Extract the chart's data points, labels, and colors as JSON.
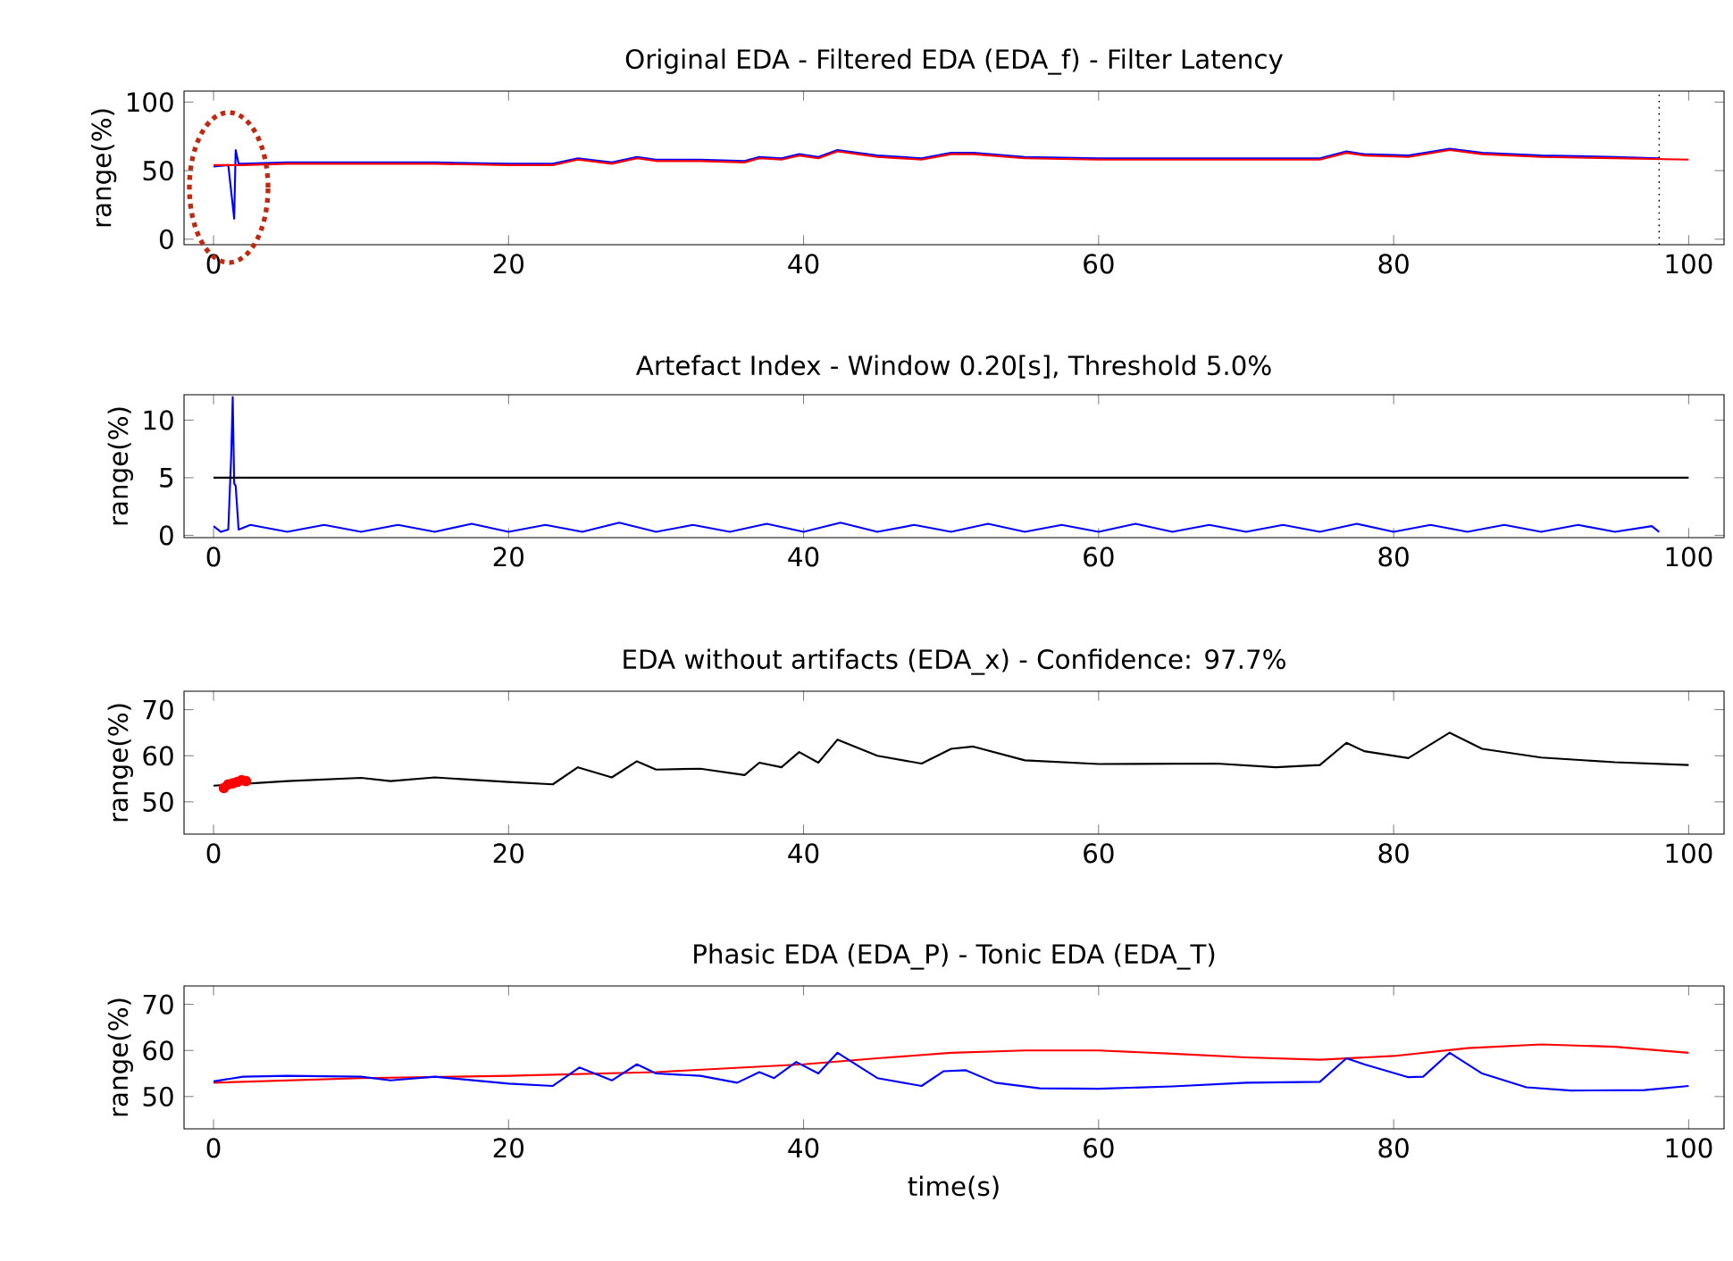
{
  "chart_data": [
    {
      "type": "line",
      "title": "Original EDA - Filtered EDA (EDA_f) - Filter Latency",
      "ylabel": "range(%)",
      "xlim": [
        -2,
        102.4
      ],
      "ylim": [
        -4,
        108
      ],
      "xticks": [
        0,
        20,
        40,
        60,
        80,
        100
      ],
      "yticks": [
        0,
        50,
        100
      ],
      "ref_lines": [
        {
          "axis": "x",
          "value": 98,
          "color": "#000000",
          "line_style": "dotted"
        }
      ],
      "series": [
        {
          "color": "#0000ff",
          "x": [
            0,
            1,
            1.4,
            1.5,
            1.7,
            2,
            5,
            10,
            12,
            15,
            20,
            23,
            24.7,
            27,
            28.7,
            30,
            33,
            36,
            37,
            38.5,
            39.7,
            41,
            42.3,
            45,
            48,
            50,
            51.5,
            55,
            60,
            68,
            72,
            75,
            76.8,
            78,
            81,
            83.8,
            86,
            90,
            95,
            98
          ],
          "values": [
            53,
            54,
            15,
            65,
            55,
            55,
            56,
            56,
            56,
            56,
            55,
            55,
            59,
            56,
            60,
            58,
            58,
            57,
            60,
            59,
            62,
            60,
            65,
            61,
            59,
            63,
            63,
            60,
            59,
            59,
            59,
            59,
            64,
            62,
            61,
            66,
            63,
            61,
            60,
            59
          ]
        },
        {
          "color": "#ff0000",
          "x": [
            0,
            2,
            5,
            10,
            12,
            15,
            20,
            23,
            24.7,
            27,
            28.7,
            30,
            33,
            36,
            37,
            38.5,
            39.7,
            41,
            42.3,
            45,
            48,
            50,
            51.5,
            55,
            60,
            68,
            72,
            75,
            76.8,
            78,
            81,
            83.8,
            86,
            90,
            95,
            100
          ],
          "values": [
            54,
            54,
            55,
            55,
            55,
            55,
            54,
            54,
            58,
            55,
            59,
            57,
            57,
            56,
            59,
            58,
            61,
            59,
            64,
            60,
            58,
            62,
            62,
            59,
            58,
            58,
            58,
            58,
            63,
            61,
            60,
            65,
            62,
            60,
            59,
            58
          ]
        }
      ]
    },
    {
      "type": "line",
      "title": "Artefact Index - Window 0.20[s], Threshold 5.0%",
      "ylabel": "range(%)",
      "xlim": [
        -2,
        102.4
      ],
      "ylim": [
        -0.2,
        12.2
      ],
      "xticks": [
        0,
        20,
        40,
        60,
        80,
        100
      ],
      "yticks": [
        0,
        5,
        10
      ],
      "series": [
        {
          "color": "#0000ff",
          "x": [
            0,
            0.5,
            1,
            1.2,
            1.3,
            1.4,
            1.5,
            1.7,
            2.5,
            5,
            7.5,
            10,
            12.5,
            15,
            17.5,
            20,
            22.5,
            25,
            27.5,
            30,
            32.5,
            35,
            37.5,
            40,
            42.5,
            45,
            47.5,
            50,
            52.5,
            55,
            57.5,
            60,
            62.5,
            65,
            67.5,
            70,
            72.5,
            75,
            77.5,
            80,
            82.5,
            85,
            87.5,
            90,
            92.5,
            95,
            97.5,
            98
          ],
          "values": [
            0.8,
            0.3,
            0.5,
            7,
            12,
            4.5,
            4.3,
            0.5,
            0.9,
            0.3,
            0.9,
            0.3,
            0.9,
            0.3,
            1,
            0.3,
            0.9,
            0.3,
            1.1,
            0.3,
            0.9,
            0.3,
            1,
            0.3,
            1.1,
            0.3,
            0.9,
            0.3,
            1,
            0.3,
            0.9,
            0.3,
            1,
            0.3,
            0.9,
            0.3,
            0.9,
            0.3,
            1,
            0.3,
            0.9,
            0.3,
            0.9,
            0.3,
            0.9,
            0.3,
            0.8,
            0.3
          ]
        },
        {
          "color": "#000000",
          "x": [
            0,
            100
          ],
          "values": [
            5,
            5
          ]
        }
      ]
    },
    {
      "type": "line",
      "title": "EDA without artifacts (EDA_x) - Confidence: 97.7%",
      "ylabel": "range(%)",
      "xlim": [
        -2,
        102.4
      ],
      "ylim": [
        43,
        74
      ],
      "xticks": [
        0,
        20,
        40,
        60,
        80,
        100
      ],
      "yticks": [
        50,
        60,
        70
      ],
      "series": [
        {
          "color": "#000000",
          "x": [
            0,
            5,
            10,
            12,
            15,
            20,
            23,
            24.7,
            27,
            28.7,
            30,
            33,
            36,
            37,
            38.5,
            39.7,
            41,
            42.3,
            45,
            48,
            50,
            51.5,
            55,
            60,
            68,
            72,
            75,
            76.8,
            78,
            81,
            83.8,
            86,
            90,
            95,
            100
          ],
          "values": [
            53.5,
            54.5,
            55.2,
            54.5,
            55.3,
            54.3,
            53.8,
            57.5,
            55.3,
            58.8,
            57,
            57.2,
            55.8,
            58.5,
            57.5,
            60.8,
            58.5,
            63.5,
            60,
            58.3,
            61.5,
            62,
            59,
            58.2,
            58.3,
            57.5,
            58,
            62.8,
            61,
            59.5,
            65,
            61.5,
            59.6,
            58.6,
            58
          ]
        },
        {
          "type": "scatter",
          "color": "#ff0000",
          "x": [
            0.7,
            1,
            1.3,
            1.6,
            1.9,
            2.2
          ],
          "values": [
            53,
            53.8,
            54,
            54.3,
            54.7,
            54.5
          ]
        }
      ]
    },
    {
      "type": "line",
      "title": "Phasic EDA (EDA_P) - Tonic EDA (EDA_T)",
      "ylabel": "range(%)",
      "xlabel": "time(s)",
      "xlim": [
        -2,
        102.4
      ],
      "ylim": [
        43,
        74
      ],
      "xticks": [
        0,
        20,
        40,
        60,
        80,
        100
      ],
      "yticks": [
        50,
        60,
        70
      ],
      "series": [
        {
          "color": "#ff0000",
          "x": [
            0,
            10,
            20,
            30,
            40,
            45,
            50,
            55,
            60,
            65,
            70,
            75,
            80,
            85,
            90,
            95,
            100
          ],
          "values": [
            53,
            54,
            54.5,
            55.3,
            57,
            58.3,
            59.5,
            60,
            60,
            59.3,
            58.5,
            58,
            58.8,
            60.5,
            61.3,
            60.8,
            59.5
          ]
        },
        {
          "color": "#0000ff",
          "x": [
            0,
            2,
            5,
            10,
            12,
            15,
            20,
            23,
            24.8,
            27,
            28.7,
            30,
            33,
            35.5,
            37,
            38,
            39.5,
            41,
            42.3,
            45,
            48,
            49.5,
            51,
            53,
            56,
            60,
            65,
            70,
            75,
            76.8,
            78,
            81,
            82,
            83.8,
            86,
            89,
            92,
            97,
            100
          ],
          "values": [
            53.3,
            54.3,
            54.5,
            54.3,
            53.5,
            54.3,
            52.8,
            52.3,
            56.3,
            53.5,
            57,
            55,
            54.5,
            53,
            55.3,
            54,
            57.5,
            55,
            59.5,
            54,
            52.3,
            55.5,
            55.7,
            53,
            51.8,
            51.7,
            52.2,
            53,
            53.2,
            58.3,
            57,
            54.2,
            54.3,
            59.5,
            55,
            52,
            51.3,
            51.4,
            52.3
          ]
        }
      ]
    }
  ]
}
